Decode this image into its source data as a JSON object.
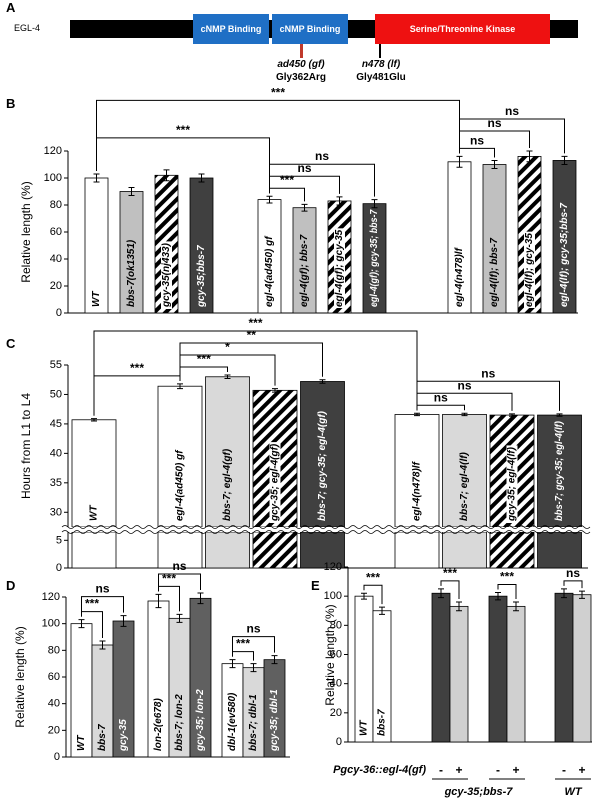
{
  "panel_a": {
    "label": "A",
    "protein": "EGL-4",
    "domains": [
      "cNMP Binding",
      "cNMP Binding",
      "Serine/Threonine Kinase"
    ],
    "mutations": [
      {
        "allele": "ad450 (gf)",
        "change": "Gly362Arg"
      },
      {
        "allele": "n478 (lf)",
        "change": "Gly481Glu"
      }
    ]
  },
  "chart_data": [
    {
      "panel": "B",
      "type": "bar",
      "y_label": "Relative length (%)",
      "ylim": [
        0,
        120
      ],
      "yticks": [
        0,
        20,
        40,
        60,
        80,
        100,
        120
      ],
      "groups": [
        {
          "categories": [
            "WT",
            "bbs-7(ok1351)",
            "gcy-35(nj433)",
            "gcy-35;bbs-7"
          ],
          "values": [
            100,
            90,
            102,
            100
          ],
          "errors": [
            3,
            3,
            4,
            3
          ],
          "fills": [
            "#ffffff",
            "#c0c0c0",
            "hatch",
            "#404040"
          ]
        },
        {
          "categories": [
            "egl-4(ad450) gf",
            "egl-4(gf); bbs-7",
            "egl-4(gf); gcy-35",
            "egl-4(gf); gcy-35; bbs-7"
          ],
          "values": [
            84,
            78,
            83,
            81
          ],
          "errors": [
            2.5,
            2.5,
            3,
            3
          ],
          "fills": [
            "#ffffff",
            "#c0c0c0",
            "hatch",
            "#404040"
          ]
        },
        {
          "categories": [
            "egl-4(n478)lf",
            "egl-4(lf); bbs-7",
            "egl-4(lf); gcy-35",
            "egl-4(lf); gcy-35;bbs-7"
          ],
          "values": [
            112,
            110,
            116,
            113
          ],
          "errors": [
            4,
            3,
            4,
            3
          ],
          "fills": [
            "#ffffff",
            "#c0c0c0",
            "hatch",
            "#404040"
          ]
        }
      ],
      "annotations": [
        "***",
        "***",
        "***",
        "ns",
        "ns",
        "ns",
        "ns",
        "ns"
      ]
    },
    {
      "panel": "C",
      "type": "bar",
      "y_label": "Hours from L1 to L4",
      "ylim": [
        27.5,
        55
      ],
      "yticks": [
        30,
        35,
        40,
        45,
        50,
        55
      ],
      "ylim_lower": [
        0,
        6.5
      ],
      "yticks_lower": [
        0,
        5
      ],
      "groups": [
        {
          "categories": [
            "WT"
          ],
          "values": [
            45.7
          ],
          "errors": [
            0.2
          ],
          "fills": [
            "#ffffff"
          ]
        },
        {
          "categories": [
            "egl-4(ad450) gf",
            "bbs-7; egl-4(gf)",
            "gcy-35; egl-4(gf)",
            "bbs-7; gcy-35; egl-4(gf)"
          ],
          "values": [
            51.4,
            53.0,
            50.7,
            52.2
          ],
          "errors": [
            0.4,
            0.3,
            0.3,
            0.3
          ],
          "fills": [
            "#ffffff",
            "#d9d9d9",
            "hatch",
            "#404040"
          ]
        },
        {
          "categories": [
            "egl-4(n478)lf",
            "bbs-7; egl-4(lf)",
            "gcy-35; egl-4(lf)",
            "bbs-7; gcy-35; egl-4(lf)"
          ],
          "values": [
            46.6,
            46.6,
            46.5,
            46.5
          ],
          "errors": [
            0.2,
            0.2,
            0.2,
            0.2
          ],
          "fills": [
            "#ffffff",
            "#d9d9d9",
            "hatch",
            "#404040"
          ]
        }
      ],
      "annotations": [
        "***",
        "***",
        "***",
        "*",
        "**",
        "ns",
        "ns",
        "ns"
      ]
    },
    {
      "panel": "D",
      "type": "bar",
      "y_label": "Relative length (%)",
      "ylim": [
        0,
        120
      ],
      "yticks": [
        0,
        20,
        40,
        60,
        80,
        100,
        120
      ],
      "groups": [
        {
          "categories": [
            "WT",
            "bbs-7",
            "gcy-35"
          ],
          "values": [
            100,
            84,
            102
          ],
          "errors": [
            3,
            3,
            4
          ],
          "fills": [
            "#ffffff",
            "#d9d9d9",
            "#606060"
          ]
        },
        {
          "categories": [
            "lon-2(e678)",
            "bbs-7; lon-2",
            "gcy-35; lon-2"
          ],
          "values": [
            117,
            104,
            119
          ],
          "errors": [
            5,
            3,
            4
          ],
          "fills": [
            "#ffffff",
            "#d9d9d9",
            "#606060"
          ]
        },
        {
          "categories": [
            "dbl-1(ev580)",
            "bbs-7; dbl-1",
            "gcy-35; dbl-1"
          ],
          "values": [
            70,
            67,
            73
          ],
          "errors": [
            3,
            3,
            3
          ],
          "fills": [
            "#ffffff",
            "#d9d9d9",
            "#606060"
          ]
        }
      ],
      "annotations": [
        "***",
        "ns",
        "***",
        "ns",
        "***",
        "ns"
      ]
    },
    {
      "panel": "E",
      "type": "bar",
      "y_label": "Relative length (%)",
      "ylim": [
        0,
        120
      ],
      "yticks": [
        0,
        20,
        40,
        60,
        80,
        100,
        120
      ],
      "row_label": "Pgcy-36::egl-4(gf)",
      "group_labels": [
        "gcy-35;bbs-7",
        "WT"
      ],
      "groups": [
        {
          "categories": [
            "WT",
            "bbs-7"
          ],
          "values": [
            100,
            90
          ],
          "errors": [
            2,
            2.5
          ],
          "fills": [
            "#ffffff",
            "#ffffff"
          ]
        },
        {
          "signs": [
            "-",
            "+"
          ],
          "values": [
            102,
            93
          ],
          "errors": [
            3,
            3
          ],
          "fills": [
            "#404040",
            "#d0d0d0"
          ]
        },
        {
          "signs": [
            "-",
            "+"
          ],
          "values": [
            100,
            93
          ],
          "errors": [
            2.5,
            3
          ],
          "fills": [
            "#404040",
            "#d0d0d0"
          ]
        },
        {
          "signs": [
            "-",
            "+"
          ],
          "values": [
            102,
            101
          ],
          "errors": [
            3,
            2.5
          ],
          "fills": [
            "#404040",
            "#d0d0d0"
          ]
        }
      ],
      "annotations": [
        "***",
        "***",
        "***",
        "ns"
      ]
    }
  ]
}
